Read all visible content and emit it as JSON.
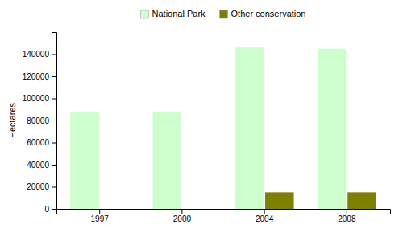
{
  "chart_data": {
    "type": "bar",
    "y_label": "Hectares",
    "categories": [
      "1997",
      "2000",
      "2004",
      "2008"
    ],
    "series": [
      {
        "name": "National Park",
        "color": "#ccffcc",
        "values": [
          88000,
          88000,
          146000,
          145000
        ]
      },
      {
        "name": "Other conservation",
        "color": "#808000",
        "values": [
          0,
          0,
          15000,
          15000
        ]
      }
    ],
    "ylim": [
      0,
      160000
    ],
    "yticks": [
      0,
      20000,
      40000,
      60000,
      80000,
      100000,
      120000,
      140000
    ],
    "grid": false,
    "legend": "top"
  }
}
